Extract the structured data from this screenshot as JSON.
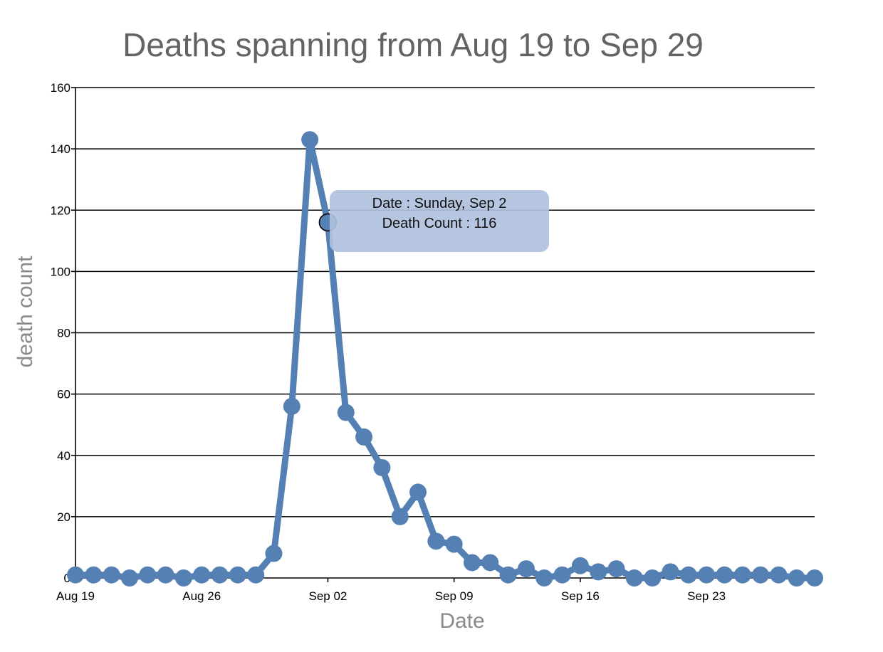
{
  "chart_data": {
    "type": "line",
    "title": "Deaths spanning from Aug 19 to Sep 29",
    "xlabel": "Date",
    "ylabel": "death count",
    "ylim": [
      0,
      160
    ],
    "yticks": [
      0,
      20,
      40,
      60,
      80,
      100,
      120,
      140,
      160
    ],
    "xlim": [
      "2012-08-19",
      "2012-09-29"
    ],
    "xticks": [
      {
        "date": "2012-08-19",
        "label": "Aug 19"
      },
      {
        "date": "2012-08-26",
        "label": "Aug 26"
      },
      {
        "date": "2012-09-02",
        "label": "Sep 02"
      },
      {
        "date": "2012-09-09",
        "label": "Sep 09"
      },
      {
        "date": "2012-09-16",
        "label": "Sep 16"
      },
      {
        "date": "2012-09-23",
        "label": "Sep 23"
      }
    ],
    "grid": true,
    "color": "#5580b3",
    "series": [
      {
        "x": [
          "2012-08-19",
          "2012-08-20",
          "2012-08-21",
          "2012-08-22",
          "2012-08-23",
          "2012-08-24",
          "2012-08-25",
          "2012-08-26",
          "2012-08-27",
          "2012-08-28",
          "2012-08-29",
          "2012-08-30",
          "2012-08-31",
          "2012-09-01",
          "2012-09-02",
          "2012-09-03",
          "2012-09-04",
          "2012-09-05",
          "2012-09-06",
          "2012-09-07",
          "2012-09-08",
          "2012-09-09",
          "2012-09-10",
          "2012-09-11",
          "2012-09-12",
          "2012-09-13",
          "2012-09-14",
          "2012-09-15",
          "2012-09-16",
          "2012-09-17",
          "2012-09-18",
          "2012-09-19",
          "2012-09-20",
          "2012-09-21",
          "2012-09-22",
          "2012-09-23",
          "2012-09-24",
          "2012-09-25",
          "2012-09-26",
          "2012-09-27",
          "2012-09-28",
          "2012-09-29"
        ],
        "values": [
          1,
          1,
          1,
          0,
          1,
          1,
          0,
          1,
          1,
          1,
          1,
          8,
          56,
          143,
          116,
          54,
          46,
          36,
          20,
          28,
          12,
          11,
          5,
          5,
          1,
          3,
          0,
          1,
          4,
          2,
          3,
          0,
          0,
          2,
          1,
          1,
          1,
          1,
          1,
          1,
          0,
          0
        ]
      }
    ],
    "tooltip": {
      "line1": "Date : Sunday, Sep 2",
      "line2": "Death Count : 116",
      "date": "2012-09-02",
      "value": 116
    }
  }
}
